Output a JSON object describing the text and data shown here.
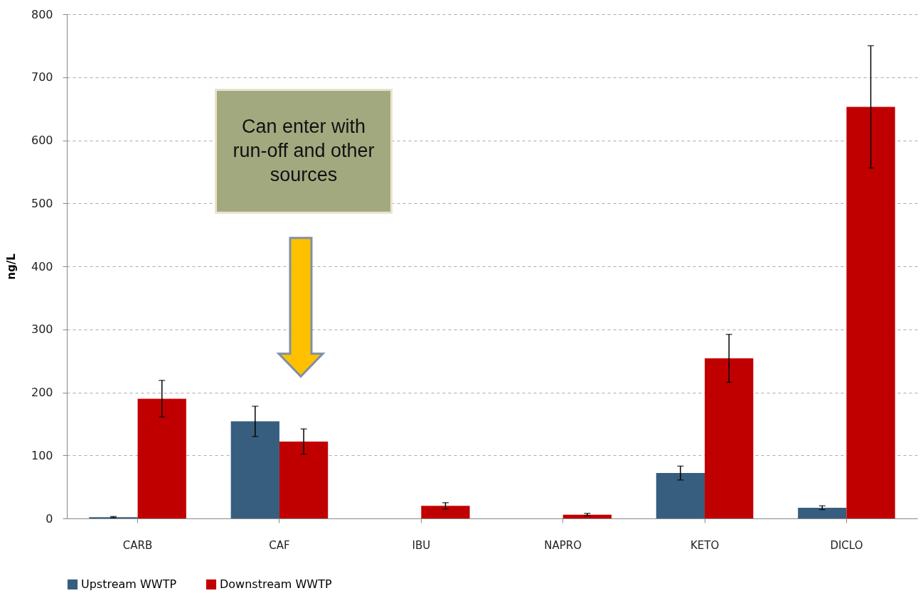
{
  "chart_data": {
    "type": "bar",
    "ylabel": "ng/L",
    "categories": [
      "CARB",
      "CAF",
      "IBU",
      "NAPRO",
      "KETO",
      "DICLO"
    ],
    "series": [
      {
        "name": "Upstream WWTP",
        "color": "#375e7f",
        "values": [
          2,
          154,
          null,
          null,
          72,
          17
        ],
        "errors": [
          1,
          24,
          null,
          null,
          11,
          3
        ]
      },
      {
        "name": "Downstream WWTP",
        "color": "#c00000",
        "values": [
          190,
          122,
          20,
          6,
          254,
          653
        ],
        "errors": [
          29,
          20,
          5,
          2,
          38,
          97
        ]
      }
    ],
    "ylim": [
      0,
      800
    ],
    "yticks": [
      0,
      100,
      200,
      300,
      400,
      500,
      600,
      700,
      800
    ],
    "grid": "y",
    "legend": "bottom",
    "annotations": [
      "Can enter with run-off and other sources"
    ]
  }
}
